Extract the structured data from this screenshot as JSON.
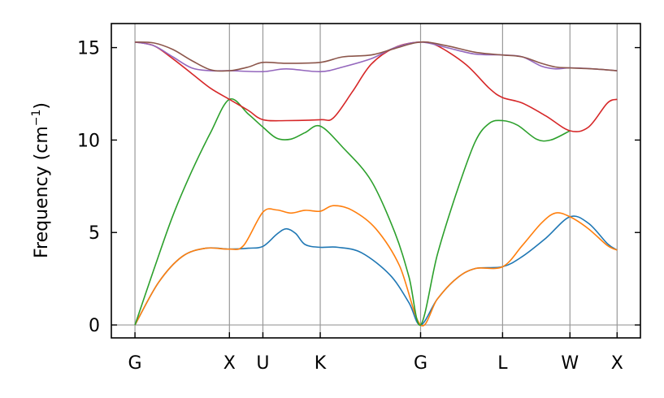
{
  "chart_data": {
    "type": "line",
    "title": "",
    "xlabel": "",
    "ylabel": "Frequency (cm",
    "ylabel_sup": "−1",
    "ylabel_close": ")",
    "ylim": [
      -0.7,
      16.3
    ],
    "yticks": [
      0,
      5,
      10,
      15
    ],
    "high_symmetry_points": [
      {
        "label": "G",
        "x": 0.0
      },
      {
        "label": "X",
        "x": 1.0
      },
      {
        "label": "U",
        "x": 1.354
      },
      {
        "label": "K",
        "x": 1.961
      },
      {
        "label": "G",
        "x": 3.023
      },
      {
        "label": "L",
        "x": 3.891
      },
      {
        "label": "W",
        "x": 4.604
      },
      {
        "label": "X",
        "x": 5.103
      }
    ],
    "xlim": [
      -0.25,
      5.35
    ],
    "grid": "vertical lines at high-symmetry points",
    "series": [
      {
        "color": "#1f77b4",
        "points": [
          [
            0,
            0
          ],
          [
            0.25,
            2.3
          ],
          [
            0.5,
            3.7
          ],
          [
            0.75,
            4.15
          ],
          [
            1.0,
            4.1
          ],
          [
            1.2,
            4.15
          ],
          [
            1.354,
            4.25
          ],
          [
            1.5,
            4.9
          ],
          [
            1.6,
            5.2
          ],
          [
            1.7,
            4.95
          ],
          [
            1.8,
            4.35
          ],
          [
            1.961,
            4.2
          ],
          [
            2.15,
            4.2
          ],
          [
            2.4,
            3.9
          ],
          [
            2.7,
            2.7
          ],
          [
            2.9,
            1.2
          ],
          [
            3.023,
            0
          ],
          [
            3.2,
            1.4
          ],
          [
            3.4,
            2.5
          ],
          [
            3.6,
            3.05
          ],
          [
            3.891,
            3.15
          ],
          [
            4.1,
            3.7
          ],
          [
            4.35,
            4.7
          ],
          [
            4.604,
            5.85
          ],
          [
            4.8,
            5.5
          ],
          [
            5.0,
            4.4
          ],
          [
            5.103,
            4.05
          ]
        ]
      },
      {
        "color": "#ff7f0e",
        "points": [
          [
            0,
            0
          ],
          [
            0.25,
            2.3
          ],
          [
            0.5,
            3.7
          ],
          [
            0.75,
            4.15
          ],
          [
            1.0,
            4.1
          ],
          [
            1.15,
            4.3
          ],
          [
            1.354,
            6.1
          ],
          [
            1.5,
            6.22
          ],
          [
            1.65,
            6.05
          ],
          [
            1.8,
            6.2
          ],
          [
            1.961,
            6.15
          ],
          [
            2.1,
            6.45
          ],
          [
            2.3,
            6.2
          ],
          [
            2.55,
            5.2
          ],
          [
            2.8,
            3.2
          ],
          [
            3.023,
            0
          ],
          [
            3.2,
            1.4
          ],
          [
            3.4,
            2.5
          ],
          [
            3.6,
            3.05
          ],
          [
            3.891,
            3.15
          ],
          [
            4.1,
            4.3
          ],
          [
            4.3,
            5.5
          ],
          [
            4.45,
            6.05
          ],
          [
            4.604,
            5.85
          ],
          [
            4.8,
            5.2
          ],
          [
            5.0,
            4.3
          ],
          [
            5.103,
            4.05
          ]
        ]
      },
      {
        "color": "#2ca02c",
        "points": [
          [
            0,
            0
          ],
          [
            0.2,
            3.0
          ],
          [
            0.4,
            5.9
          ],
          [
            0.6,
            8.3
          ],
          [
            0.8,
            10.4
          ],
          [
            1.0,
            12.2
          ],
          [
            1.2,
            11.4
          ],
          [
            1.354,
            10.7
          ],
          [
            1.5,
            10.1
          ],
          [
            1.65,
            10.05
          ],
          [
            1.8,
            10.4
          ],
          [
            1.961,
            10.75
          ],
          [
            2.2,
            9.6
          ],
          [
            2.5,
            7.8
          ],
          [
            2.75,
            5.0
          ],
          [
            2.9,
            2.6
          ],
          [
            3.023,
            0
          ],
          [
            3.2,
            3.8
          ],
          [
            3.4,
            7.1
          ],
          [
            3.6,
            9.9
          ],
          [
            3.75,
            10.9
          ],
          [
            3.891,
            11.05
          ],
          [
            4.05,
            10.8
          ],
          [
            4.25,
            10.05
          ],
          [
            4.4,
            10.0
          ],
          [
            4.604,
            10.5
          ]
        ]
      },
      {
        "color": "#d62728",
        "points": [
          [
            0,
            15.3
          ],
          [
            0.2,
            15.1
          ],
          [
            0.4,
            14.4
          ],
          [
            0.6,
            13.6
          ],
          [
            0.8,
            12.8
          ],
          [
            1.0,
            12.2
          ],
          [
            1.2,
            11.6
          ],
          [
            1.354,
            11.1
          ],
          [
            1.6,
            11.05
          ],
          [
            1.961,
            11.1
          ],
          [
            2.1,
            11.2
          ],
          [
            2.3,
            12.6
          ],
          [
            2.5,
            14.1
          ],
          [
            2.75,
            15.0
          ],
          [
            3.023,
            15.3
          ],
          [
            3.2,
            15.1
          ],
          [
            3.5,
            14.1
          ],
          [
            3.75,
            12.8
          ],
          [
            3.891,
            12.3
          ],
          [
            4.1,
            12.0
          ],
          [
            4.35,
            11.3
          ],
          [
            4.604,
            10.5
          ],
          [
            4.8,
            10.7
          ],
          [
            5.0,
            12.0
          ],
          [
            5.103,
            12.2
          ]
        ]
      },
      {
        "color": "#9467bd",
        "points": [
          [
            0,
            15.3
          ],
          [
            0.2,
            15.1
          ],
          [
            0.4,
            14.5
          ],
          [
            0.6,
            13.9
          ],
          [
            0.8,
            13.75
          ],
          [
            1.0,
            13.75
          ],
          [
            1.354,
            13.7
          ],
          [
            1.6,
            13.85
          ],
          [
            1.961,
            13.7
          ],
          [
            2.2,
            13.95
          ],
          [
            2.5,
            14.4
          ],
          [
            2.75,
            15.0
          ],
          [
            3.023,
            15.3
          ],
          [
            3.3,
            15.0
          ],
          [
            3.6,
            14.65
          ],
          [
            3.891,
            14.6
          ],
          [
            4.1,
            14.5
          ],
          [
            4.3,
            14.0
          ],
          [
            4.45,
            13.85
          ],
          [
            4.604,
            13.9
          ],
          [
            4.85,
            13.85
          ],
          [
            5.103,
            13.75
          ]
        ]
      },
      {
        "color": "#8c564b",
        "points": [
          [
            0,
            15.3
          ],
          [
            0.2,
            15.25
          ],
          [
            0.4,
            14.9
          ],
          [
            0.6,
            14.3
          ],
          [
            0.8,
            13.8
          ],
          [
            1.0,
            13.75
          ],
          [
            1.2,
            13.95
          ],
          [
            1.354,
            14.2
          ],
          [
            1.6,
            14.15
          ],
          [
            1.961,
            14.2
          ],
          [
            2.2,
            14.5
          ],
          [
            2.5,
            14.6
          ],
          [
            2.75,
            14.95
          ],
          [
            3.023,
            15.3
          ],
          [
            3.3,
            15.1
          ],
          [
            3.6,
            14.75
          ],
          [
            3.891,
            14.6
          ],
          [
            4.1,
            14.5
          ],
          [
            4.3,
            14.15
          ],
          [
            4.45,
            13.95
          ],
          [
            4.604,
            13.9
          ],
          [
            4.85,
            13.85
          ],
          [
            5.103,
            13.75
          ]
        ]
      }
    ]
  }
}
